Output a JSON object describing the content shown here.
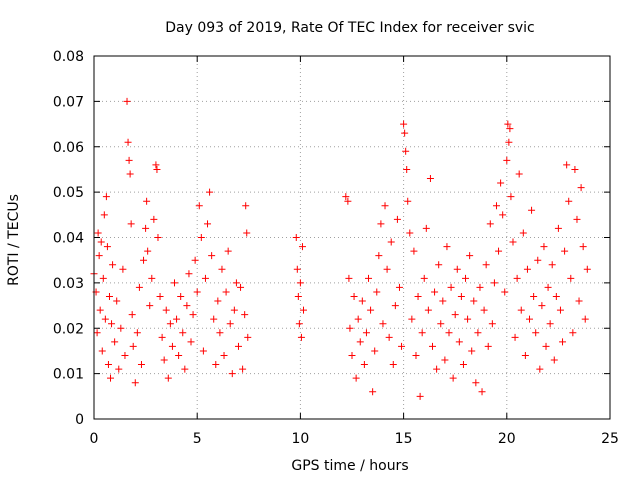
{
  "chart_data": {
    "type": "scatter",
    "title": "Day 093 of 2019, Rate Of TEC Index for receiver svic",
    "xlabel": "GPS time / hours",
    "ylabel": "ROTI / TECUs",
    "xlim": [
      0,
      25
    ],
    "ylim": [
      0,
      0.08
    ],
    "xticks": [
      0,
      5,
      10,
      15,
      20,
      25
    ],
    "xtick_labels": [
      "0",
      "5",
      "10",
      "15",
      "20",
      "25"
    ],
    "yticks": [
      0,
      0.01,
      0.02,
      0.03,
      0.04,
      0.05,
      0.06,
      0.07,
      0.08
    ],
    "ytick_labels": [
      "0",
      "0.01",
      "0.02",
      "0.03",
      "0.04",
      "0.05",
      "0.06",
      "0.07",
      "0.08"
    ],
    "grid": true,
    "marker": "+",
    "color": "#ff0000",
    "series": [
      {
        "name": "ROTI",
        "points": [
          [
            0.0,
            0.032
          ],
          [
            0.1,
            0.028
          ],
          [
            0.15,
            0.019
          ],
          [
            0.2,
            0.041
          ],
          [
            0.25,
            0.036
          ],
          [
            0.3,
            0.024
          ],
          [
            0.35,
            0.039
          ],
          [
            0.4,
            0.015
          ],
          [
            0.45,
            0.031
          ],
          [
            0.5,
            0.045
          ],
          [
            0.55,
            0.022
          ],
          [
            0.6,
            0.049
          ],
          [
            0.65,
            0.038
          ],
          [
            0.7,
            0.012
          ],
          [
            0.75,
            0.027
          ],
          [
            0.8,
            0.009
          ],
          [
            0.85,
            0.021
          ],
          [
            0.9,
            0.034
          ],
          [
            1.0,
            0.017
          ],
          [
            1.1,
            0.026
          ],
          [
            1.2,
            0.011
          ],
          [
            1.3,
            0.02
          ],
          [
            1.4,
            0.033
          ],
          [
            1.5,
            0.014
          ],
          [
            1.6,
            0.07
          ],
          [
            1.65,
            0.061
          ],
          [
            1.7,
            0.057
          ],
          [
            1.75,
            0.054
          ],
          [
            1.8,
            0.043
          ],
          [
            1.85,
            0.023
          ],
          [
            1.9,
            0.016
          ],
          [
            2.0,
            0.008
          ],
          [
            2.1,
            0.019
          ],
          [
            2.2,
            0.029
          ],
          [
            2.3,
            0.012
          ],
          [
            2.4,
            0.035
          ],
          [
            2.5,
            0.042
          ],
          [
            2.55,
            0.048
          ],
          [
            2.6,
            0.037
          ],
          [
            2.7,
            0.025
          ],
          [
            2.8,
            0.031
          ],
          [
            2.9,
            0.044
          ],
          [
            3.0,
            0.056
          ],
          [
            3.05,
            0.055
          ],
          [
            3.1,
            0.04
          ],
          [
            3.2,
            0.027
          ],
          [
            3.3,
            0.018
          ],
          [
            3.4,
            0.013
          ],
          [
            3.5,
            0.024
          ],
          [
            3.6,
            0.009
          ],
          [
            3.7,
            0.021
          ],
          [
            3.8,
            0.016
          ],
          [
            3.9,
            0.03
          ],
          [
            4.0,
            0.022
          ],
          [
            4.1,
            0.014
          ],
          [
            4.2,
            0.027
          ],
          [
            4.3,
            0.019
          ],
          [
            4.4,
            0.011
          ],
          [
            4.5,
            0.025
          ],
          [
            4.6,
            0.032
          ],
          [
            4.7,
            0.017
          ],
          [
            4.8,
            0.023
          ],
          [
            4.9,
            0.035
          ],
          [
            5.0,
            0.028
          ],
          [
            5.1,
            0.047
          ],
          [
            5.2,
            0.04
          ],
          [
            5.3,
            0.015
          ],
          [
            5.4,
            0.031
          ],
          [
            5.5,
            0.043
          ],
          [
            5.6,
            0.05
          ],
          [
            5.7,
            0.036
          ],
          [
            5.8,
            0.022
          ],
          [
            5.9,
            0.012
          ],
          [
            6.0,
            0.026
          ],
          [
            6.1,
            0.019
          ],
          [
            6.2,
            0.033
          ],
          [
            6.3,
            0.014
          ],
          [
            6.4,
            0.028
          ],
          [
            6.5,
            0.037
          ],
          [
            6.6,
            0.021
          ],
          [
            6.7,
            0.01
          ],
          [
            6.8,
            0.024
          ],
          [
            6.9,
            0.03
          ],
          [
            7.0,
            0.016
          ],
          [
            7.1,
            0.029
          ],
          [
            7.2,
            0.011
          ],
          [
            7.3,
            0.023
          ],
          [
            7.35,
            0.047
          ],
          [
            7.4,
            0.041
          ],
          [
            7.45,
            0.018
          ],
          [
            9.8,
            0.04
          ],
          [
            9.85,
            0.033
          ],
          [
            9.9,
            0.027
          ],
          [
            9.95,
            0.021
          ],
          [
            10.0,
            0.03
          ],
          [
            10.05,
            0.018
          ],
          [
            10.1,
            0.038
          ],
          [
            10.15,
            0.024
          ],
          [
            12.2,
            0.049
          ],
          [
            12.3,
            0.048
          ],
          [
            12.35,
            0.031
          ],
          [
            12.4,
            0.02
          ],
          [
            12.5,
            0.014
          ],
          [
            12.6,
            0.027
          ],
          [
            12.7,
            0.009
          ],
          [
            12.8,
            0.022
          ],
          [
            12.9,
            0.017
          ],
          [
            13.0,
            0.026
          ],
          [
            13.1,
            0.012
          ],
          [
            13.2,
            0.019
          ],
          [
            13.3,
            0.031
          ],
          [
            13.4,
            0.024
          ],
          [
            13.5,
            0.006
          ],
          [
            13.6,
            0.015
          ],
          [
            13.7,
            0.028
          ],
          [
            13.8,
            0.036
          ],
          [
            13.9,
            0.043
          ],
          [
            14.0,
            0.021
          ],
          [
            14.1,
            0.047
          ],
          [
            14.2,
            0.033
          ],
          [
            14.3,
            0.018
          ],
          [
            14.4,
            0.039
          ],
          [
            14.5,
            0.012
          ],
          [
            14.6,
            0.025
          ],
          [
            14.7,
            0.044
          ],
          [
            14.8,
            0.029
          ],
          [
            14.9,
            0.016
          ],
          [
            15.0,
            0.065
          ],
          [
            15.05,
            0.063
          ],
          [
            15.1,
            0.059
          ],
          [
            15.15,
            0.055
          ],
          [
            15.2,
            0.048
          ],
          [
            15.3,
            0.041
          ],
          [
            15.4,
            0.022
          ],
          [
            15.5,
            0.037
          ],
          [
            15.6,
            0.014
          ],
          [
            15.7,
            0.027
          ],
          [
            15.8,
            0.005
          ],
          [
            15.9,
            0.019
          ],
          [
            16.0,
            0.031
          ],
          [
            16.1,
            0.042
          ],
          [
            16.2,
            0.024
          ],
          [
            16.3,
            0.053
          ],
          [
            16.4,
            0.016
          ],
          [
            16.5,
            0.028
          ],
          [
            16.6,
            0.011
          ],
          [
            16.7,
            0.034
          ],
          [
            16.8,
            0.021
          ],
          [
            16.9,
            0.026
          ],
          [
            17.0,
            0.013
          ],
          [
            17.1,
            0.038
          ],
          [
            17.2,
            0.019
          ],
          [
            17.3,
            0.029
          ],
          [
            17.4,
            0.009
          ],
          [
            17.5,
            0.023
          ],
          [
            17.6,
            0.033
          ],
          [
            17.7,
            0.017
          ],
          [
            17.8,
            0.027
          ],
          [
            17.9,
            0.012
          ],
          [
            18.0,
            0.031
          ],
          [
            18.1,
            0.022
          ],
          [
            18.2,
            0.036
          ],
          [
            18.3,
            0.015
          ],
          [
            18.4,
            0.026
          ],
          [
            18.5,
            0.008
          ],
          [
            18.6,
            0.019
          ],
          [
            18.7,
            0.029
          ],
          [
            18.8,
            0.006
          ],
          [
            18.9,
            0.024
          ],
          [
            19.0,
            0.034
          ],
          [
            19.1,
            0.016
          ],
          [
            19.2,
            0.043
          ],
          [
            19.3,
            0.021
          ],
          [
            19.4,
            0.03
          ],
          [
            19.5,
            0.047
          ],
          [
            19.6,
            0.037
          ],
          [
            19.7,
            0.052
          ],
          [
            19.8,
            0.045
          ],
          [
            19.9,
            0.028
          ],
          [
            20.0,
            0.057
          ],
          [
            20.05,
            0.065
          ],
          [
            20.1,
            0.061
          ],
          [
            20.15,
            0.064
          ],
          [
            20.2,
            0.049
          ],
          [
            20.3,
            0.039
          ],
          [
            20.4,
            0.018
          ],
          [
            20.5,
            0.031
          ],
          [
            20.6,
            0.054
          ],
          [
            20.7,
            0.024
          ],
          [
            20.8,
            0.041
          ],
          [
            20.9,
            0.014
          ],
          [
            21.0,
            0.033
          ],
          [
            21.1,
            0.022
          ],
          [
            21.2,
            0.046
          ],
          [
            21.3,
            0.027
          ],
          [
            21.4,
            0.019
          ],
          [
            21.5,
            0.035
          ],
          [
            21.6,
            0.011
          ],
          [
            21.7,
            0.025
          ],
          [
            21.8,
            0.038
          ],
          [
            21.9,
            0.016
          ],
          [
            22.0,
            0.029
          ],
          [
            22.1,
            0.021
          ],
          [
            22.2,
            0.034
          ],
          [
            22.3,
            0.013
          ],
          [
            22.4,
            0.027
          ],
          [
            22.5,
            0.042
          ],
          [
            22.6,
            0.024
          ],
          [
            22.7,
            0.017
          ],
          [
            22.8,
            0.037
          ],
          [
            22.9,
            0.056
          ],
          [
            23.0,
            0.048
          ],
          [
            23.1,
            0.031
          ],
          [
            23.2,
            0.019
          ],
          [
            23.3,
            0.055
          ],
          [
            23.4,
            0.044
          ],
          [
            23.5,
            0.026
          ],
          [
            23.6,
            0.051
          ],
          [
            23.7,
            0.038
          ],
          [
            23.8,
            0.022
          ],
          [
            23.9,
            0.033
          ]
        ]
      }
    ]
  }
}
